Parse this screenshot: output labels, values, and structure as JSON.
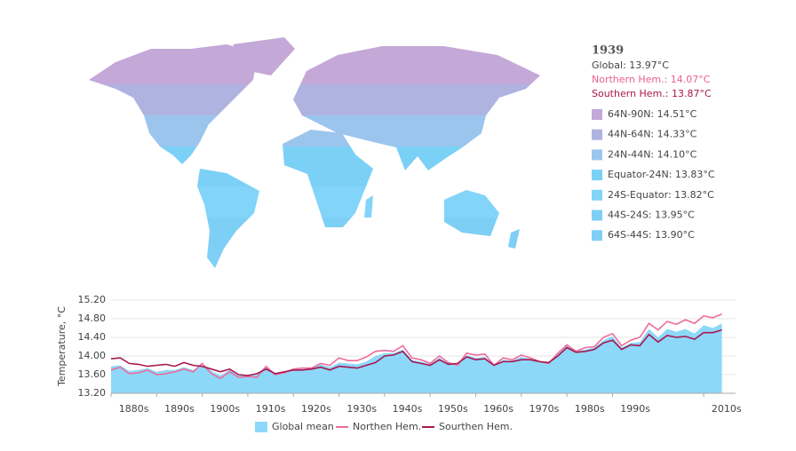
{
  "map_legend": {
    "year": "1939",
    "global": "Global: 13.97°C",
    "north": "Northern Hem.: 14.07°C",
    "south": "Southern Hem.: 13.87°C",
    "bands": [
      {
        "label": "64N-90N: 14.51°C",
        "color": "#c3a8d8"
      },
      {
        "label": "44N-64N: 14.33°C",
        "color": "#afb3e0"
      },
      {
        "label": "24N-44N: 14.10°C",
        "color": "#9cc5ee"
      },
      {
        "label": "Equator-24N: 13.83°C",
        "color": "#7bd0f6"
      },
      {
        "label": "24S-Equator: 13.82°C",
        "color": "#82d4f8"
      },
      {
        "label": "44S-24S: 13.95°C",
        "color": "#7ecff5"
      },
      {
        "label": "64S-44S: 13.90°C",
        "color": "#80d0f6"
      }
    ]
  },
  "chart_data": {
    "type": "line",
    "y_label": "Temperature, °C",
    "x": [
      1880,
      1882,
      1884,
      1886,
      1888,
      1890,
      1892,
      1894,
      1896,
      1898,
      1900,
      1902,
      1904,
      1906,
      1908,
      1910,
      1912,
      1914,
      1916,
      1918,
      1920,
      1922,
      1924,
      1926,
      1928,
      1930,
      1932,
      1934,
      1936,
      1938,
      1940,
      1942,
      1944,
      1946,
      1948,
      1950,
      1952,
      1954,
      1956,
      1958,
      1960,
      1962,
      1964,
      1966,
      1968,
      1970,
      1972,
      1974,
      1976,
      1978,
      1980,
      1982,
      1984,
      1986,
      1988,
      1990,
      1992,
      1994,
      1996,
      1998,
      2000,
      2002,
      2004,
      2006,
      2008,
      2010,
      2012,
      2014
    ],
    "xlim": [
      1880,
      2017
    ],
    "xticks": [
      {
        "value": 1880,
        "label": "1880s"
      },
      {
        "value": 1890,
        "label": "1890s"
      },
      {
        "value": 1900,
        "label": "1900s"
      },
      {
        "value": 1910,
        "label": "1910s"
      },
      {
        "value": 1920,
        "label": "1920s"
      },
      {
        "value": 1930,
        "label": "1930s"
      },
      {
        "value": 1940,
        "label": "1940s"
      },
      {
        "value": 1950,
        "label": "1950s"
      },
      {
        "value": 1960,
        "label": "1960s"
      },
      {
        "value": 1970,
        "label": "1970s"
      },
      {
        "value": 1980,
        "label": "1980s"
      },
      {
        "value": 1990,
        "label": "1990s"
      },
      {
        "value": 2010,
        "label": "2010s"
      }
    ],
    "ylim": [
      13.2,
      15.2
    ],
    "yticks": [
      {
        "value": 13.2,
        "label": "13.20"
      },
      {
        "value": 13.6,
        "label": "13.60"
      },
      {
        "value": 14.0,
        "label": "14.00"
      },
      {
        "value": 14.4,
        "label": "14.40"
      },
      {
        "value": 14.8,
        "label": "14.80"
      },
      {
        "value": 15.2,
        "label": "15.20"
      }
    ],
    "grid": true,
    "series": [
      {
        "name": "Global mean",
        "color": "#8dd8f8",
        "style": "area",
        "values": [
          13.78,
          13.8,
          13.68,
          13.7,
          13.74,
          13.66,
          13.7,
          13.7,
          13.76,
          13.7,
          13.8,
          13.68,
          13.58,
          13.7,
          13.58,
          13.58,
          13.6,
          13.76,
          13.62,
          13.66,
          13.72,
          13.72,
          13.74,
          13.82,
          13.76,
          13.86,
          13.84,
          13.82,
          13.88,
          14.0,
          14.06,
          14.06,
          14.14,
          13.92,
          13.88,
          13.82,
          13.96,
          13.84,
          13.82,
          14.02,
          13.96,
          13.98,
          13.8,
          13.92,
          13.9,
          13.98,
          13.94,
          13.88,
          13.86,
          14.04,
          14.22,
          14.1,
          14.14,
          14.18,
          14.34,
          14.42,
          14.18,
          14.28,
          14.3,
          14.58,
          14.4,
          14.58,
          14.52,
          14.58,
          14.48,
          14.66,
          14.6,
          14.7
        ]
      },
      {
        "name": "Northen Hem.",
        "color": "#ec6d9c",
        "style": "line",
        "values": [
          13.7,
          13.76,
          13.62,
          13.64,
          13.7,
          13.6,
          13.62,
          13.66,
          13.72,
          13.66,
          13.84,
          13.62,
          13.52,
          13.66,
          13.54,
          13.56,
          13.54,
          13.78,
          13.6,
          13.64,
          13.72,
          13.74,
          13.74,
          13.84,
          13.8,
          13.96,
          13.9,
          13.9,
          13.98,
          14.1,
          14.12,
          14.1,
          14.22,
          13.96,
          13.92,
          13.84,
          14.0,
          13.86,
          13.8,
          14.06,
          14.02,
          14.04,
          13.8,
          13.96,
          13.92,
          14.02,
          13.96,
          13.88,
          13.84,
          14.06,
          14.24,
          14.1,
          14.18,
          14.2,
          14.4,
          14.48,
          14.22,
          14.34,
          14.4,
          14.7,
          14.56,
          14.74,
          14.68,
          14.78,
          14.7,
          14.86,
          14.82,
          14.9
        ]
      },
      {
        "name": "Sourthen Hem.",
        "color": "#a8174f",
        "style": "line",
        "values": [
          13.94,
          13.96,
          13.84,
          13.82,
          13.78,
          13.8,
          13.82,
          13.78,
          13.86,
          13.8,
          13.78,
          13.72,
          13.66,
          13.72,
          13.6,
          13.58,
          13.62,
          13.72,
          13.62,
          13.66,
          13.7,
          13.7,
          13.72,
          13.76,
          13.7,
          13.78,
          13.76,
          13.74,
          13.8,
          13.86,
          14.0,
          14.02,
          14.1,
          13.88,
          13.84,
          13.8,
          13.92,
          13.82,
          13.84,
          13.98,
          13.92,
          13.94,
          13.8,
          13.88,
          13.88,
          13.92,
          13.92,
          13.88,
          13.86,
          14.0,
          14.18,
          14.08,
          14.1,
          14.14,
          14.28,
          14.34,
          14.14,
          14.24,
          14.22,
          14.46,
          14.3,
          14.44,
          14.4,
          14.42,
          14.36,
          14.5,
          14.5,
          14.56
        ]
      }
    ]
  }
}
